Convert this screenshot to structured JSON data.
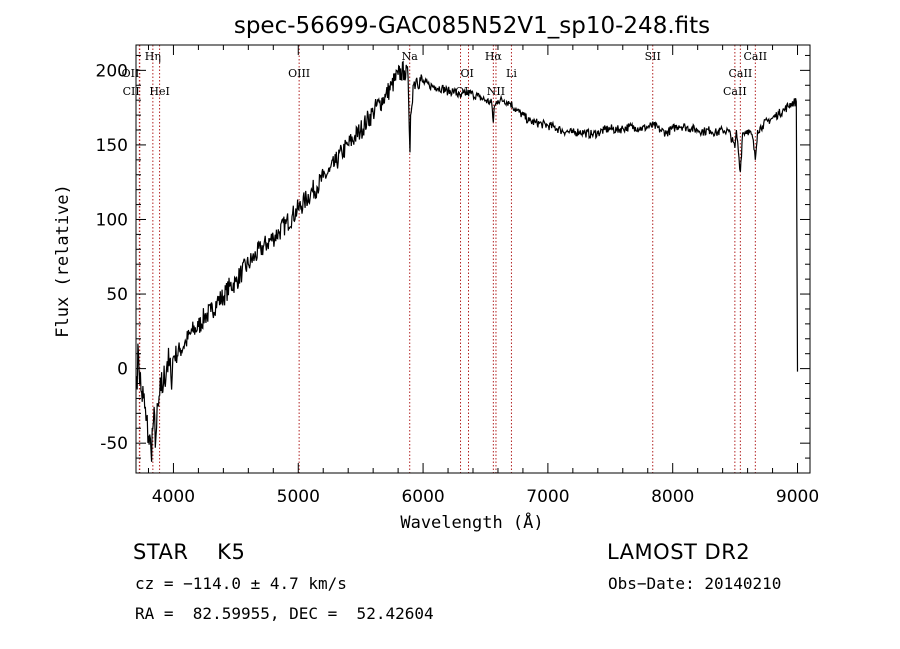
{
  "chart_data": {
    "type": "line",
    "title": "spec-56699-GAC085N52V1_sp10-248.fits",
    "xlabel": "Wavelength (Å)",
    "ylabel": "Flux (relative)",
    "xlim": [
      3700,
      9100
    ],
    "ylim": [
      -70,
      217
    ],
    "xticks": [
      4000,
      5000,
      6000,
      7000,
      8000,
      9000
    ],
    "yticks": [
      -50,
      0,
      50,
      100,
      150,
      200
    ],
    "grid": false,
    "series": [
      {
        "points": [
          [
            3705,
            -5
          ],
          [
            3720,
            10
          ],
          [
            3740,
            -15
          ],
          [
            3760,
            -20
          ],
          [
            3780,
            -35
          ],
          [
            3800,
            -45
          ],
          [
            3820,
            -55
          ],
          [
            3840,
            -35
          ],
          [
            3860,
            -45
          ],
          [
            3880,
            -25
          ],
          [
            3900,
            -15
          ],
          [
            3920,
            -10
          ],
          [
            3950,
            5
          ],
          [
            3980,
            -5
          ],
          [
            4000,
            8
          ],
          [
            4050,
            12
          ],
          [
            4100,
            18
          ],
          [
            4150,
            25
          ],
          [
            4200,
            28
          ],
          [
            4250,
            35
          ],
          [
            4300,
            38
          ],
          [
            4350,
            45
          ],
          [
            4400,
            48
          ],
          [
            4450,
            55
          ],
          [
            4500,
            58
          ],
          [
            4550,
            65
          ],
          [
            4600,
            70
          ],
          [
            4650,
            75
          ],
          [
            4700,
            80
          ],
          [
            4750,
            84
          ],
          [
            4800,
            88
          ],
          [
            4850,
            92
          ],
          [
            4900,
            97
          ],
          [
            4950,
            102
          ],
          [
            5000,
            107
          ],
          [
            5050,
            112
          ],
          [
            5100,
            118
          ],
          [
            5150,
            122
          ],
          [
            5200,
            128
          ],
          [
            5250,
            132
          ],
          [
            5300,
            138
          ],
          [
            5350,
            145
          ],
          [
            5400,
            150
          ],
          [
            5450,
            155
          ],
          [
            5500,
            160
          ],
          [
            5550,
            166
          ],
          [
            5600,
            172
          ],
          [
            5650,
            178
          ],
          [
            5700,
            183
          ],
          [
            5750,
            190
          ],
          [
            5800,
            197
          ],
          [
            5850,
            200
          ],
          [
            5880,
            195
          ],
          [
            5890,
            160
          ],
          [
            5895,
            145
          ],
          [
            5900,
            170
          ],
          [
            5920,
            190
          ],
          [
            5950,
            195
          ],
          [
            6000,
            192
          ],
          [
            6050,
            190
          ],
          [
            6100,
            189
          ],
          [
            6150,
            188
          ],
          [
            6200,
            186
          ],
          [
            6250,
            186
          ],
          [
            6300,
            182
          ],
          [
            6350,
            185
          ],
          [
            6400,
            184
          ],
          [
            6450,
            182
          ],
          [
            6500,
            180
          ],
          [
            6550,
            178
          ],
          [
            6563,
            165
          ],
          [
            6570,
            175
          ],
          [
            6600,
            180
          ],
          [
            6650,
            180
          ],
          [
            6700,
            178
          ],
          [
            6750,
            173
          ],
          [
            6800,
            170
          ],
          [
            6850,
            166
          ],
          [
            6900,
            165
          ],
          [
            6950,
            164
          ],
          [
            7000,
            163
          ],
          [
            7050,
            162
          ],
          [
            7100,
            160
          ],
          [
            7150,
            159
          ],
          [
            7200,
            158
          ],
          [
            7250,
            159
          ],
          [
            7300,
            158
          ],
          [
            7350,
            157
          ],
          [
            7400,
            158
          ],
          [
            7450,
            160
          ],
          [
            7500,
            161
          ],
          [
            7550,
            160
          ],
          [
            7600,
            161
          ],
          [
            7650,
            162
          ],
          [
            7700,
            162
          ],
          [
            7750,
            161
          ],
          [
            7800,
            162
          ],
          [
            7850,
            163
          ],
          [
            7900,
            160
          ],
          [
            7950,
            158
          ],
          [
            8000,
            161
          ],
          [
            8050,
            163
          ],
          [
            8100,
            162
          ],
          [
            8150,
            161
          ],
          [
            8200,
            160
          ],
          [
            8250,
            159
          ],
          [
            8300,
            160
          ],
          [
            8350,
            158
          ],
          [
            8400,
            160
          ],
          [
            8450,
            159
          ],
          [
            8498,
            148
          ],
          [
            8510,
            160
          ],
          [
            8542,
            132
          ],
          [
            8560,
            158
          ],
          [
            8600,
            160
          ],
          [
            8640,
            155
          ],
          [
            8662,
            140
          ],
          [
            8680,
            160
          ],
          [
            8720,
            163
          ],
          [
            8760,
            166
          ],
          [
            8800,
            168
          ],
          [
            8850,
            171
          ],
          [
            8900,
            174
          ],
          [
            8950,
            178
          ],
          [
            8990,
            179
          ],
          [
            9000,
            -2
          ]
        ]
      }
    ],
    "line_markers": [
      {
        "label": "Hη",
        "x": 3835,
        "row": 0,
        "anchor": "middle"
      },
      {
        "label": "OII",
        "x": 3727,
        "row": 1,
        "anchor": "end"
      },
      {
        "label": "CII",
        "x": 3730,
        "row": 2,
        "anchor": "end"
      },
      {
        "label": "HeI",
        "x": 3889,
        "row": 2,
        "anchor": "middle"
      },
      {
        "label": "OIII",
        "x": 5007,
        "row": 1,
        "anchor": "middle"
      },
      {
        "label": "Na",
        "x": 5893,
        "row": 0,
        "anchor": "middle"
      },
      {
        "label": "OI",
        "x": 6300,
        "row": 1,
        "anchor": "start"
      },
      {
        "label": "OI",
        "x": 6364,
        "row": 2,
        "anchor": "end"
      },
      {
        "label": "Hα",
        "x": 6563,
        "row": 0,
        "anchor": "middle"
      },
      {
        "label": "NII",
        "x": 6584,
        "row": 2,
        "anchor": "middle"
      },
      {
        "label": "Li",
        "x": 6708,
        "row": 1,
        "anchor": "middle"
      },
      {
        "label": "SII",
        "x": 7840,
        "row": 0,
        "anchor": "middle"
      },
      {
        "label": "CaII",
        "x": 8498,
        "row": 2,
        "anchor": "middle"
      },
      {
        "label": "CaII",
        "x": 8542,
        "row": 1,
        "anchor": "middle"
      },
      {
        "label": "CaII",
        "x": 8662,
        "row": 0,
        "anchor": "middle"
      }
    ]
  },
  "info": {
    "class_text": "STAR    K5",
    "cz_text": "cz = −114.0 ± 4.7 km/s",
    "radec_text": "RA =  82.59955, DEC =  52.42604",
    "survey_text": "LAMOST DR2",
    "obsdate_text": "Obs−Date: 20140210"
  },
  "colors": {
    "axis": "#000000",
    "spectrum": "#000000",
    "marker_line": "#b22222"
  }
}
